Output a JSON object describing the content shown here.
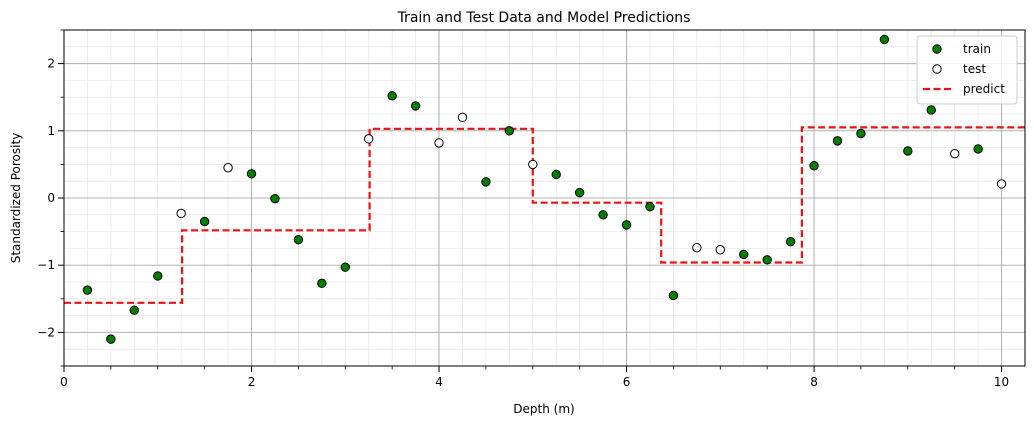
{
  "chart_data": {
    "type": "scatter",
    "title": "Train and Test Data and Model Predictions",
    "xlabel": "Depth (m)",
    "ylabel": "Standardized Porosity",
    "xlim": [
      0,
      10.25
    ],
    "ylim": [
      -2.5,
      2.5
    ],
    "xticks": [
      0,
      2,
      4,
      6,
      8,
      10
    ],
    "yticks": [
      -2,
      -1,
      0,
      1,
      2
    ],
    "legend_position": "top-right",
    "series": [
      {
        "name": "train",
        "marker": "circle",
        "fill": "#007f00",
        "edge": "#000000",
        "points": [
          [
            0.25,
            -1.37
          ],
          [
            0.5,
            -2.1
          ],
          [
            0.75,
            -1.67
          ],
          [
            1.0,
            -1.16
          ],
          [
            1.5,
            -0.35
          ],
          [
            2.0,
            0.36
          ],
          [
            2.25,
            -0.01
          ],
          [
            2.5,
            -0.62
          ],
          [
            2.75,
            -1.27
          ],
          [
            3.0,
            -1.03
          ],
          [
            3.5,
            1.52
          ],
          [
            3.75,
            1.37
          ],
          [
            4.5,
            0.24
          ],
          [
            4.75,
            1.0
          ],
          [
            5.25,
            0.35
          ],
          [
            5.5,
            0.08
          ],
          [
            5.75,
            -0.25
          ],
          [
            6.0,
            -0.4
          ],
          [
            6.25,
            -0.13
          ],
          [
            6.5,
            -1.45
          ],
          [
            7.25,
            -0.84
          ],
          [
            7.5,
            -0.92
          ],
          [
            7.75,
            -0.65
          ],
          [
            8.0,
            0.48
          ],
          [
            8.25,
            0.85
          ],
          [
            8.5,
            0.96
          ],
          [
            8.75,
            2.36
          ],
          [
            9.0,
            0.7
          ],
          [
            9.25,
            1.31
          ],
          [
            9.75,
            0.73
          ]
        ]
      },
      {
        "name": "test",
        "marker": "circle",
        "fill": "#ffffff",
        "edge": "#000000",
        "points": [
          [
            1.25,
            -0.23
          ],
          [
            1.75,
            0.45
          ],
          [
            3.25,
            0.88
          ],
          [
            4.0,
            0.82
          ],
          [
            4.25,
            1.2
          ],
          [
            5.0,
            0.5
          ],
          [
            6.75,
            -0.74
          ],
          [
            7.0,
            -0.77
          ],
          [
            9.5,
            0.66
          ],
          [
            10.0,
            0.21
          ]
        ]
      },
      {
        "name": "predict",
        "style": "dashed-line",
        "color": "#ee1111",
        "steps": [
          {
            "x0": 0.0,
            "x1": 1.26,
            "y": -1.56
          },
          {
            "x0": 1.26,
            "x1": 3.26,
            "y": -0.48
          },
          {
            "x0": 3.26,
            "x1": 5.0,
            "y": 1.03
          },
          {
            "x0": 5.0,
            "x1": 6.37,
            "y": -0.07
          },
          {
            "x0": 6.37,
            "x1": 7.87,
            "y": -0.96
          },
          {
            "x0": 7.87,
            "x1": 10.25,
            "y": 1.05
          }
        ]
      }
    ]
  }
}
